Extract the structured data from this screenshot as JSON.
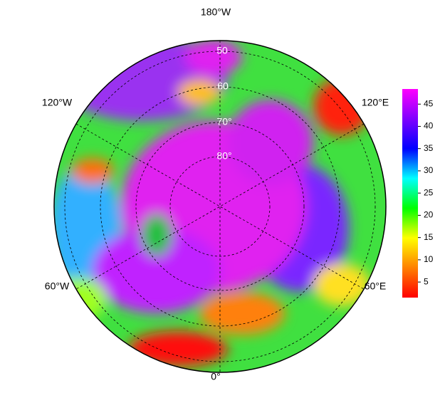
{
  "map": {
    "longitude_labels": {
      "top": "180°W",
      "upper_left": "120°W",
      "upper_right": "120°E",
      "lower_left": "60°W",
      "lower_right": "60°E",
      "bottom": "0°"
    },
    "latitude_labels": [
      "50",
      "60",
      "70°",
      "80°"
    ],
    "colorbar": {
      "clim": [
        1.5,
        48.4
      ],
      "ticks": [
        5,
        10,
        15,
        20,
        25,
        30,
        35,
        40,
        45
      ],
      "colormap": [
        "#ff0000",
        "#ff8000",
        "#ffff00",
        "#00ff00",
        "#00ffff",
        "#0000ff",
        "#8000ff",
        "#ff00ff"
      ]
    }
  }
}
